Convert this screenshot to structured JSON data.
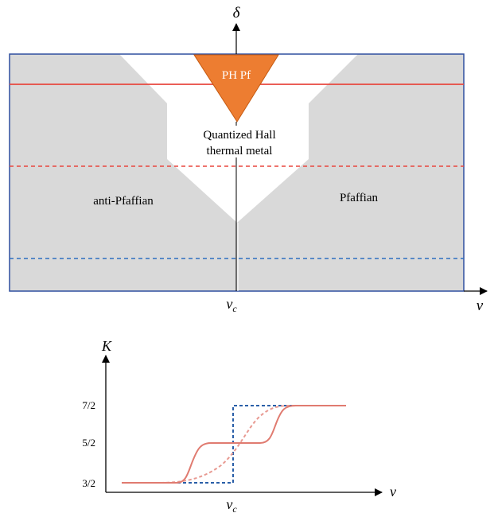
{
  "phase_diagram": {
    "y_axis_label": "δ",
    "x_axis_label": "ν",
    "critical_label": "ν",
    "critical_subscript": "c",
    "regions": {
      "left": "anti-Pfaffian",
      "right": "Pfaffian",
      "center_line1": "Quantized Hall",
      "center_line2": "thermal metal",
      "top": "PH Pf"
    },
    "colors": {
      "phase_fill": "#d9d9d9",
      "frame": "#2f4f9f",
      "triangle": "#ed7d31",
      "solid_red": "#e8473f",
      "dashed_red": "#e8473f",
      "dashed_blue": "#2e6fc0"
    }
  },
  "conductance_plot": {
    "y_axis_label": "K",
    "x_axis_label": "ν",
    "critical_label": "ν",
    "critical_subscript": "c",
    "y_ticks": [
      "7/2",
      "5/2",
      "3/2"
    ],
    "colors": {
      "solid": "#e07b70",
      "dashed_red": "#e89a92",
      "dashed_blue": "#2a5fa8"
    }
  }
}
